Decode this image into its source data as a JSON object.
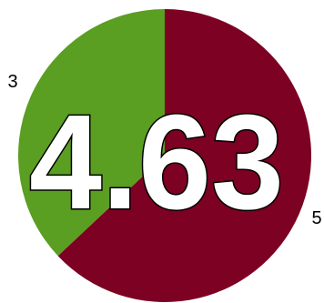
{
  "chart_data": {
    "type": "pie",
    "center_value": "4.63",
    "slices": [
      {
        "label": "3",
        "value": 0.37,
        "color": "#5a9e22"
      },
      {
        "label": "5",
        "value": 0.63,
        "color": "#7c0122"
      }
    ]
  }
}
